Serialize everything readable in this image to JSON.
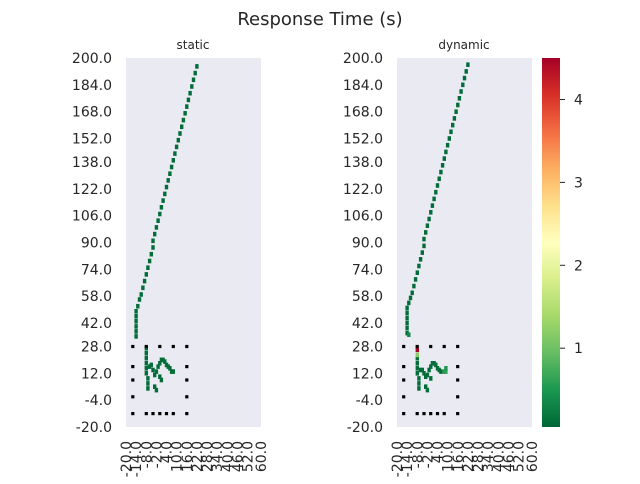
{
  "figure_title": "Response Time (s)",
  "chart_data": {
    "type": "heatmap",
    "title": "Response Time (s)",
    "colormap": "RdYlGn_r",
    "color_range": [
      0.05,
      4.5
    ],
    "colorbar_ticks": [
      "1",
      "2",
      "3",
      "4"
    ],
    "colorbar_values": [
      1,
      2,
      3,
      4
    ],
    "colors": {
      "background": "#eaeaf2",
      "low": "#006837",
      "mid": "#ffffbf",
      "high": "#a50026",
      "marker": "#000000"
    },
    "ylim": [
      -20,
      200
    ],
    "xlim": [
      -20,
      60
    ],
    "y_tick_labels": [
      "200.0",
      "184.0",
      "168.0",
      "152.0",
      "138.0",
      "122.0",
      "106.0",
      "90.0",
      "74.0",
      "58.0",
      "42.0",
      "28.0",
      "12.0",
      "-4.0",
      "-20.0"
    ],
    "y_tick_values": [
      200,
      184,
      168,
      152,
      138,
      122,
      106,
      90,
      74,
      58,
      42,
      28,
      12,
      -4,
      -20
    ],
    "x_tick_labels": [
      "-20.0",
      "-14.0",
      "-8.0",
      "-2.0",
      "4.0",
      "10.0",
      "16.0",
      "22.0",
      "28.0",
      "34.0",
      "40.0",
      "46.0",
      "52.0",
      "60.0"
    ],
    "x_tick_values": [
      -20,
      -14,
      -8,
      -2,
      4,
      10,
      16,
      22,
      28,
      34,
      40,
      46,
      52,
      60
    ],
    "subplots": [
      {
        "title": "static",
        "trajectory_value": 0.1,
        "trajectory": [
          [
            -14,
            34
          ],
          [
            -14,
            37
          ],
          [
            -14,
            40
          ],
          [
            -14,
            43
          ],
          [
            -14,
            46
          ],
          [
            -14,
            49
          ],
          [
            -13,
            52
          ],
          [
            -12,
            56
          ],
          [
            -11,
            59
          ],
          [
            -10,
            63
          ],
          [
            -9,
            67
          ],
          [
            -8,
            71
          ],
          [
            -7,
            75
          ],
          [
            -6,
            79
          ],
          [
            -5,
            83
          ],
          [
            -4,
            87
          ],
          [
            -4,
            91
          ],
          [
            -3,
            95
          ],
          [
            -2,
            99
          ],
          [
            -1,
            103
          ],
          [
            0,
            107
          ],
          [
            1,
            111
          ],
          [
            2,
            115
          ],
          [
            3,
            119
          ],
          [
            4,
            123
          ],
          [
            5,
            127
          ],
          [
            6,
            131
          ],
          [
            7,
            135
          ],
          [
            8,
            139
          ],
          [
            9,
            143
          ],
          [
            10,
            147
          ],
          [
            11,
            151
          ],
          [
            12,
            155
          ],
          [
            13,
            159
          ],
          [
            14,
            163
          ],
          [
            15,
            167
          ],
          [
            16,
            171
          ],
          [
            17,
            175
          ],
          [
            18,
            179
          ],
          [
            19,
            183
          ],
          [
            20,
            187
          ],
          [
            21,
            191
          ],
          [
            22,
            195
          ]
        ],
        "cluster": [
          [
            -8,
            27
          ],
          [
            -8,
            24
          ],
          [
            -8,
            21
          ],
          [
            -8,
            18
          ],
          [
            -8,
            15
          ],
          [
            -8,
            12
          ],
          [
            -7,
            9
          ],
          [
            -7,
            6
          ],
          [
            -7,
            3
          ],
          [
            -6,
            16
          ],
          [
            -5,
            17
          ],
          [
            -4,
            14
          ],
          [
            -3,
            11
          ],
          [
            -2,
            13
          ],
          [
            -1,
            16
          ],
          [
            0,
            18
          ],
          [
            1,
            20
          ],
          [
            2,
            20
          ],
          [
            3,
            19
          ],
          [
            4,
            17
          ],
          [
            5,
            16
          ],
          [
            6,
            15
          ],
          [
            7,
            13
          ],
          [
            8,
            13
          ],
          [
            -3,
            4
          ],
          [
            -2,
            2
          ],
          [
            0,
            10
          ],
          [
            1,
            8
          ]
        ],
        "markers": [
          [
            -16,
            28
          ],
          [
            -8,
            28
          ],
          [
            0,
            28
          ],
          [
            8,
            28
          ],
          [
            16,
            28
          ],
          [
            -16,
            16
          ],
          [
            16,
            16
          ],
          [
            -16,
            8
          ],
          [
            16,
            8
          ],
          [
            -16,
            -2
          ],
          [
            16,
            -2
          ],
          [
            -16,
            -12
          ],
          [
            -8,
            -12
          ],
          [
            -4,
            -12
          ],
          [
            0,
            -12
          ],
          [
            4,
            -12
          ],
          [
            8,
            -12
          ],
          [
            16,
            -12
          ]
        ]
      },
      {
        "title": "dynamic",
        "trajectory_value": 0.1,
        "trajectory": [
          [
            -14,
            36
          ],
          [
            -14,
            39
          ],
          [
            -14,
            42
          ],
          [
            -14,
            45
          ],
          [
            -14,
            48
          ],
          [
            -14,
            51
          ],
          [
            -13,
            54
          ],
          [
            -12,
            57
          ],
          [
            -11,
            60
          ],
          [
            -10,
            64
          ],
          [
            -9,
            68
          ],
          [
            -8,
            72
          ],
          [
            -7,
            76
          ],
          [
            -6,
            80
          ],
          [
            -5,
            84
          ],
          [
            -4,
            88
          ],
          [
            -4,
            92
          ],
          [
            -3,
            96
          ],
          [
            -2,
            100
          ],
          [
            -1,
            104
          ],
          [
            0,
            108
          ],
          [
            1,
            112
          ],
          [
            2,
            116
          ],
          [
            3,
            120
          ],
          [
            4,
            124
          ],
          [
            5,
            128
          ],
          [
            6,
            132
          ],
          [
            7,
            136
          ],
          [
            8,
            140
          ],
          [
            9,
            144
          ],
          [
            10,
            148
          ],
          [
            11,
            152
          ],
          [
            12,
            156
          ],
          [
            13,
            160
          ],
          [
            14,
            164
          ],
          [
            15,
            168
          ],
          [
            16,
            172
          ],
          [
            17,
            176
          ],
          [
            18,
            180
          ],
          [
            19,
            184
          ],
          [
            20,
            188
          ],
          [
            21,
            192
          ],
          [
            22,
            196
          ]
        ],
        "cluster": [
          [
            -8,
            21
          ],
          [
            -8,
            18
          ],
          [
            -8,
            15
          ],
          [
            -8,
            12
          ],
          [
            -7,
            9
          ],
          [
            -7,
            6
          ],
          [
            -7,
            3
          ],
          [
            -6,
            14
          ],
          [
            -5,
            14
          ],
          [
            -4,
            12
          ],
          [
            -3,
            10
          ],
          [
            -2,
            11
          ],
          [
            -1,
            14
          ],
          [
            0,
            16
          ],
          [
            1,
            18
          ],
          [
            2,
            18
          ],
          [
            3,
            17
          ],
          [
            4,
            15
          ],
          [
            5,
            14
          ],
          [
            6,
            13
          ],
          [
            -3,
            4
          ],
          [
            -2,
            2
          ],
          [
            0,
            9
          ]
        ],
        "highlights": [
          [
            -8,
            26,
            4.5
          ],
          [
            -8,
            23,
            1.2
          ],
          [
            -13,
            35,
            0.35
          ],
          [
            8,
            13,
            0.55
          ],
          [
            9,
            13,
            0.6
          ],
          [
            9,
            15,
            0.5
          ]
        ],
        "markers": [
          [
            -16,
            28
          ],
          [
            -8,
            28
          ],
          [
            0,
            28
          ],
          [
            8,
            28
          ],
          [
            16,
            28
          ],
          [
            -16,
            16
          ],
          [
            16,
            16
          ],
          [
            -16,
            8
          ],
          [
            16,
            8
          ],
          [
            -16,
            -2
          ],
          [
            16,
            -2
          ],
          [
            -16,
            -12
          ],
          [
            -8,
            -12
          ],
          [
            -4,
            -12
          ],
          [
            0,
            -12
          ],
          [
            4,
            -12
          ],
          [
            8,
            -12
          ],
          [
            16,
            -12
          ]
        ]
      }
    ]
  }
}
